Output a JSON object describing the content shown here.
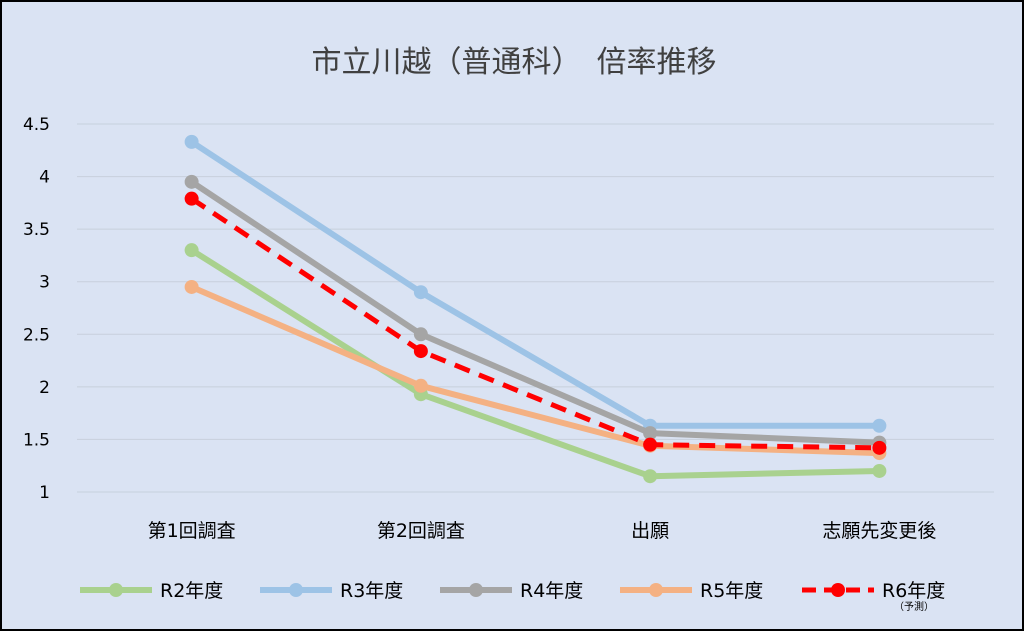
{
  "chart_data": {
    "type": "line",
    "title": "市立川越（普通科）　倍率推移",
    "xlabel": "",
    "ylabel": "",
    "categories": [
      "第1回調査",
      "第2回調査",
      "出願",
      "志願先変更後"
    ],
    "yticks": [
      "1",
      "1.5",
      "2",
      "2.5",
      "3",
      "3.5",
      "4",
      "4.5"
    ],
    "ylim": [
      1,
      4.5
    ],
    "grid": true,
    "legend_position": "bottom",
    "series": [
      {
        "name": "R2年度",
        "color": "#a9d18e",
        "dashed": false,
        "values": [
          3.3,
          1.93,
          1.15,
          1.2
        ]
      },
      {
        "name": "R3年度",
        "color": "#9dc3e6",
        "dashed": false,
        "values": [
          4.33,
          2.9,
          1.63,
          1.63
        ]
      },
      {
        "name": "R4年度",
        "color": "#a5a5a5",
        "dashed": false,
        "values": [
          3.95,
          2.5,
          1.56,
          1.47
        ]
      },
      {
        "name": "R5年度",
        "color": "#f4b183",
        "dashed": false,
        "values": [
          2.95,
          2.01,
          1.44,
          1.37
        ]
      },
      {
        "name": "R6年度",
        "note": "（予測）",
        "color": "#ff0000",
        "dashed": true,
        "values": [
          3.79,
          2.34,
          1.45,
          1.42
        ]
      }
    ]
  }
}
